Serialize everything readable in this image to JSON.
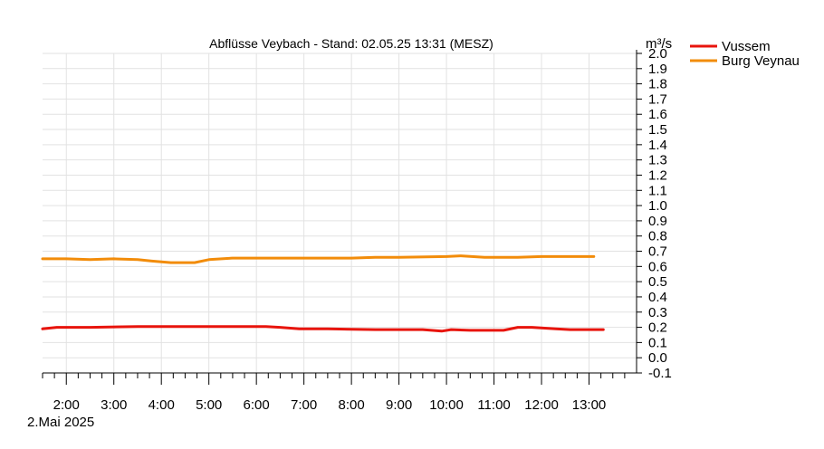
{
  "chart_data": {
    "type": "line",
    "title": "Abflüsse Veybach - Stand: 02.05.25 13:31 (MESZ)",
    "xlabel": "",
    "ylabel": "m³/s",
    "date_label": "2.Mai 2025",
    "x_tick_labels": [
      "2:00",
      "3:00",
      "4:00",
      "5:00",
      "6:00",
      "7:00",
      "8:00",
      "9:00",
      "10:00",
      "11:00",
      "12:00",
      "13:00"
    ],
    "x_range_hours": [
      1.5,
      14.0
    ],
    "ylim": [
      -0.1,
      2.0
    ],
    "y_tick_labels": [
      "-0.1",
      "0.0",
      "0.1",
      "0.2",
      "0.3",
      "0.4",
      "0.5",
      "0.6",
      "0.7",
      "0.8",
      "0.9",
      "1.0",
      "1.1",
      "1.2",
      "1.3",
      "1.4",
      "1.5",
      "1.6",
      "1.7",
      "1.8",
      "1.9",
      "2.0"
    ],
    "grid": true,
    "legend_position": "top-right",
    "series": [
      {
        "name": "Vussem",
        "color": "#e8140c",
        "x": [
          1.5,
          1.8,
          2.5,
          3.5,
          4.5,
          5.5,
          6.2,
          6.5,
          6.9,
          7.5,
          8.5,
          9.5,
          9.9,
          10.1,
          10.5,
          11.2,
          11.5,
          11.8,
          12.3,
          12.6,
          13.0,
          13.3
        ],
        "y": [
          0.19,
          0.2,
          0.2,
          0.205,
          0.205,
          0.205,
          0.205,
          0.2,
          0.19,
          0.19,
          0.185,
          0.185,
          0.175,
          0.185,
          0.18,
          0.18,
          0.2,
          0.2,
          0.19,
          0.185,
          0.185,
          0.185
        ]
      },
      {
        "name": "Burg Veynau",
        "color": "#f28c0a",
        "x": [
          1.5,
          2.0,
          2.5,
          3.0,
          3.5,
          3.8,
          4.2,
          4.7,
          5.0,
          5.5,
          6.0,
          7.0,
          7.5,
          8.0,
          8.5,
          9.0,
          10.0,
          10.3,
          10.8,
          11.5,
          12.0,
          13.0,
          13.1
        ],
        "y": [
          0.65,
          0.65,
          0.645,
          0.65,
          0.645,
          0.635,
          0.625,
          0.625,
          0.645,
          0.655,
          0.655,
          0.655,
          0.655,
          0.655,
          0.66,
          0.66,
          0.665,
          0.67,
          0.66,
          0.66,
          0.665,
          0.665,
          0.665
        ]
      }
    ]
  }
}
